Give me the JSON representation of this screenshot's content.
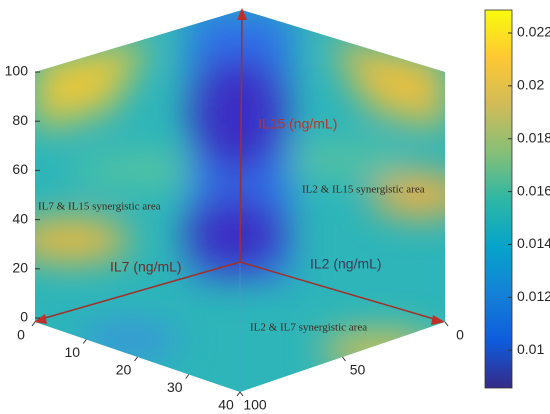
{
  "chart_data": {
    "type": "surface3d",
    "axis_labels": {
      "z": "IL15 (ng/mL)",
      "x": "IL7 (ng/mL)",
      "y": "IL2 (ng/mL)"
    },
    "annotations": [
      "IL7 & IL15 synergistic area",
      "IL2 & IL15 synergistic area",
      "IL2 & IL7 synergistic area"
    ],
    "xlim": [
      0,
      40
    ],
    "xticks": [
      0,
      10,
      20,
      30,
      40
    ],
    "ylim": [
      0,
      100
    ],
    "yticks": [
      0,
      50,
      100
    ],
    "zlim": [
      0,
      100
    ],
    "zticks": [
      0,
      20,
      40,
      60,
      80,
      100
    ],
    "colorbar": {
      "clim": [
        0.00857,
        0.02287
      ],
      "ticks": [
        0.01,
        0.012,
        0.014,
        0.016,
        0.018,
        0.02,
        0.022
      ],
      "colormap": "parula"
    }
  }
}
